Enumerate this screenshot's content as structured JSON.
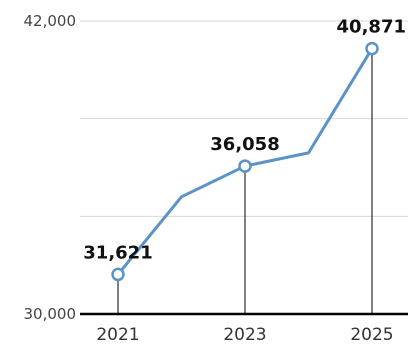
{
  "chart_data": {
    "type": "line",
    "title": "",
    "xlabel": "",
    "ylabel": "",
    "x": [
      2021,
      2022,
      2023,
      2024,
      2025
    ],
    "series": [
      {
        "values": [
          31621,
          34800,
          36058,
          36600,
          40871
        ]
      }
    ],
    "highlighted": [
      {
        "x": 2021,
        "value": 31621,
        "label": "31,621"
      },
      {
        "x": 2023,
        "value": 36058,
        "label": "36,058"
      },
      {
        "x": 2025,
        "value": 40871,
        "label": "40,871"
      }
    ],
    "ylim": [
      30000,
      42000
    ],
    "yticks": [
      30000,
      34000,
      38000,
      42000
    ],
    "ytick_labels": [
      {
        "value": 30000,
        "label": "30,000"
      },
      {
        "value": 42000,
        "label": "42,000"
      }
    ],
    "xtick_labels": [
      "2021",
      "2023",
      "2025"
    ],
    "grid": true,
    "line_color": "#5b93c9",
    "grid_color": "#d9d9d9",
    "axis_color": "#000000"
  }
}
